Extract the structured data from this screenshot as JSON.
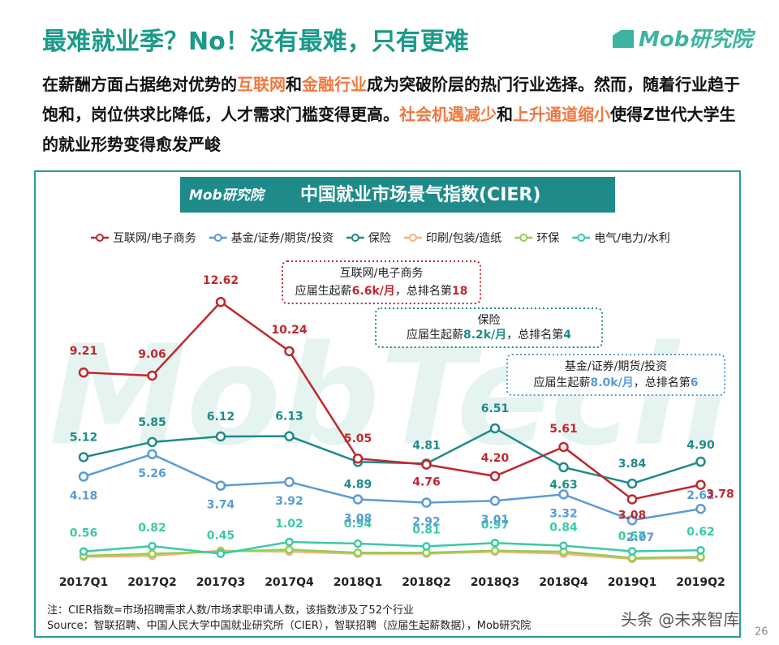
{
  "header": {
    "title": "最难就业季？No！没有最难，只有更难",
    "logo": "Mob研究院"
  },
  "intro": [
    "在薪酬方面占据绝对优势的",
    "互联网",
    "和",
    "金融行业",
    "成为突破阶层的热门行业选择。然而，随着行业趋于饱和，岗位供求比降低，人才需求门槛变得更高。",
    "社会机遇减少",
    "和",
    "上升通道缩小",
    "使得Z世代大学生的就业形势变得愈发严峻"
  ],
  "chart_data": {
    "type": "line",
    "banner_logo": "Mob研究院",
    "title": "中国就业市场景气指数(CIER)",
    "watermark": "MobTech",
    "categories": [
      "2017Q1",
      "2017Q2",
      "2017Q3",
      "2017Q4",
      "2018Q1",
      "2018Q2",
      "2018Q3",
      "2018Q4",
      "2019Q1",
      "2019Q2"
    ],
    "series": [
      {
        "name": "互联网/电子商务",
        "color": "#c0282e",
        "values": [
          9.21,
          9.06,
          12.62,
          10.24,
          5.05,
          4.76,
          4.2,
          5.61,
          3.08,
          3.78
        ],
        "value_labels": [
          "9.21",
          "9.06",
          "12.62",
          "10.24",
          "5.05",
          "4.76",
          "4.20",
          "5.61",
          "3.08",
          "3.78"
        ]
      },
      {
        "name": "基金/证券/期货/投资",
        "color": "#5b9bd5",
        "values": [
          4.18,
          5.26,
          3.74,
          3.92,
          3.08,
          2.92,
          3.01,
          3.32,
          2.07,
          2.62
        ],
        "value_labels": [
          "4.18",
          "5.26",
          "3.74",
          "3.92",
          "3.08",
          "2.92",
          "3.01",
          "3.32",
          "2.07",
          "2.62"
        ]
      },
      {
        "name": "保险",
        "color": "#1f8a8a",
        "values": [
          5.12,
          5.85,
          6.12,
          6.13,
          4.89,
          4.81,
          6.51,
          4.63,
          3.84,
          4.9
        ],
        "value_labels": [
          "5.12",
          "5.85",
          "6.12",
          "6.13",
          "4.89",
          "4.81",
          "6.51",
          "4.63",
          "3.84",
          "4.90"
        ]
      },
      {
        "name": "印刷/包装/造纸",
        "color": "#f4b183",
        "values": [
          0.3,
          0.35,
          0.6,
          0.55,
          0.45,
          0.45,
          0.55,
          0.45,
          0.2,
          0.25
        ]
      },
      {
        "name": "环保",
        "color": "#92d050",
        "values": [
          0.35,
          0.45,
          0.55,
          0.65,
          0.5,
          0.5,
          0.6,
          0.55,
          0.25,
          0.3
        ]
      },
      {
        "name": "电气/电力/水利",
        "color": "#3cc8a8",
        "values": [
          0.56,
          0.82,
          0.45,
          1.02,
          0.94,
          0.81,
          0.97,
          0.84,
          0.57,
          0.62
        ],
        "value_labels": [
          "0.56",
          "0.82",
          "0.45",
          "1.02",
          "0.94",
          "0.81",
          "0.97",
          "0.84",
          "0.57",
          "0.62"
        ]
      }
    ],
    "annotations": [
      {
        "title": "互联网/电子商务",
        "parts": [
          "应届生起薪",
          "6.6k/月",
          "，总排名第",
          "18"
        ],
        "color": "#c0282e"
      },
      {
        "title": "保险",
        "parts": [
          "应届生起薪",
          "8.2k/月",
          "，总排名第",
          "4"
        ],
        "color": "#1f8a8a"
      },
      {
        "title": "基金/证券/期货/投资",
        "parts": [
          "应届生起薪",
          "8.0k/月",
          "，总排名第",
          "6"
        ],
        "color": "#5b9bd5"
      }
    ]
  },
  "footer": {
    "note": "注：CIER指数=市场招聘需求人数/市场求职申请人数，该指数涉及了52个行业",
    "source": "Source：智联招聘、中国人民大学中国就业研究所（CIER），智联招聘（应届生起薪数据），Mob研究院",
    "page": "26",
    "watermark": "头条 @未来智库"
  }
}
